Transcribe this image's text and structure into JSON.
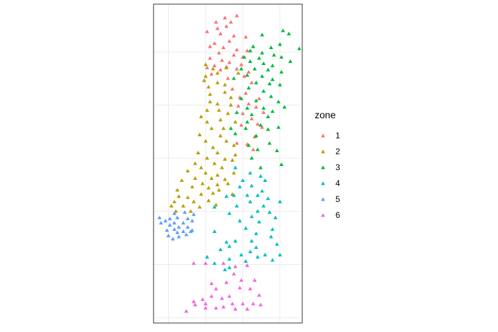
{
  "chart_data": {
    "type": "scatter",
    "marker": "triangle",
    "grid": true,
    "xlim": [
      0,
      10
    ],
    "ylim": [
      0,
      30
    ],
    "legend": {
      "title": "zone",
      "position": "right",
      "entries": [
        {
          "label": "1",
          "color": "#F8766D"
        },
        {
          "label": "2",
          "color": "#B79F00"
        },
        {
          "label": "3",
          "color": "#00BA38"
        },
        {
          "label": "4",
          "color": "#00BFC4"
        },
        {
          "label": "5",
          "color": "#619CFF"
        },
        {
          "label": "6",
          "color": "#F564E3"
        }
      ]
    },
    "series": [
      {
        "name": "1",
        "color": "#F8766D",
        "points": [
          [
            4.2,
            28.3
          ],
          [
            4.8,
            28.7
          ],
          [
            5.6,
            28.9
          ],
          [
            5.2,
            28.3
          ],
          [
            4.9,
            27.9
          ],
          [
            4.3,
            27.7
          ],
          [
            3.6,
            27.4
          ],
          [
            4.5,
            27.2
          ],
          [
            5.4,
            27.0
          ],
          [
            6.2,
            26.9
          ],
          [
            5.1,
            26.5
          ],
          [
            4.1,
            26.3
          ],
          [
            3.8,
            26.0
          ],
          [
            4.7,
            25.9
          ],
          [
            5.6,
            25.7
          ],
          [
            6.3,
            25.6
          ],
          [
            4.4,
            25.4
          ],
          [
            5.4,
            25.2
          ],
          [
            6.0,
            25.0
          ],
          [
            3.8,
            24.9
          ],
          [
            4.6,
            24.7
          ],
          [
            5.1,
            24.5
          ],
          [
            5.9,
            24.3
          ],
          [
            4.1,
            24.2
          ],
          [
            4.9,
            24.1
          ],
          [
            3.6,
            24.0
          ],
          [
            5.6,
            23.9
          ],
          [
            4.5,
            23.8
          ],
          [
            6.4,
            23.6
          ],
          [
            3.9,
            23.4
          ],
          [
            6.1,
            23.2
          ],
          [
            5.0,
            23.0
          ],
          [
            6.6,
            22.6
          ],
          [
            5.3,
            22.0
          ],
          [
            6.2,
            21.6
          ],
          [
            5.8,
            21.2
          ],
          [
            7.1,
            21.1
          ],
          [
            6.4,
            20.6
          ],
          [
            5.7,
            20.4
          ],
          [
            6.9,
            20.3
          ],
          [
            6.0,
            19.7
          ],
          [
            7.4,
            19.8
          ],
          [
            6.6,
            19.2
          ],
          [
            7.0,
            18.7
          ],
          [
            5.9,
            18.6
          ],
          [
            7.3,
            18.4
          ],
          [
            6.8,
            17.5
          ],
          [
            6.3,
            16.8
          ],
          [
            6.7,
            16.3
          ],
          [
            5.6,
            16.9
          ]
        ]
      },
      {
        "name": "2",
        "color": "#B79F00",
        "points": [
          [
            3.5,
            24.3
          ],
          [
            4.0,
            23.9
          ],
          [
            4.9,
            24.0
          ],
          [
            3.5,
            23.2
          ],
          [
            4.3,
            23.5
          ],
          [
            5.7,
            23.5
          ],
          [
            3.4,
            22.8
          ],
          [
            3.7,
            22.2
          ],
          [
            4.3,
            22.6
          ],
          [
            4.8,
            22.4
          ],
          [
            3.8,
            21.5
          ],
          [
            4.8,
            21.7
          ],
          [
            5.2,
            21.2
          ],
          [
            3.8,
            20.8
          ],
          [
            4.3,
            20.6
          ],
          [
            5.2,
            20.5
          ],
          [
            3.6,
            20.0
          ],
          [
            4.4,
            20.0
          ],
          [
            3.2,
            19.4
          ],
          [
            4.5,
            19.1
          ],
          [
            5.0,
            19.7
          ],
          [
            3.6,
            18.9
          ],
          [
            5.5,
            18.9
          ],
          [
            3.9,
            18.3
          ],
          [
            4.7,
            18.3
          ],
          [
            3.1,
            17.7
          ],
          [
            4.5,
            17.6
          ],
          [
            3.5,
            17.1
          ],
          [
            4.9,
            17.1
          ],
          [
            4.0,
            16.5
          ],
          [
            5.4,
            16.7
          ],
          [
            3.0,
            16.0
          ],
          [
            4.3,
            16.0
          ],
          [
            3.6,
            15.5
          ],
          [
            4.8,
            15.4
          ],
          [
            5.5,
            15.8
          ],
          [
            2.8,
            15.0
          ],
          [
            4.1,
            15.0
          ],
          [
            5.3,
            15.3
          ],
          [
            3.2,
            14.6
          ],
          [
            4.6,
            14.6
          ],
          [
            2.3,
            14.3
          ],
          [
            3.5,
            14.1
          ],
          [
            4.3,
            13.9
          ],
          [
            5.4,
            14.1
          ],
          [
            2.8,
            13.6
          ],
          [
            3.9,
            13.6
          ],
          [
            4.8,
            13.5
          ],
          [
            1.9,
            13.4
          ],
          [
            3.3,
            13.1
          ],
          [
            4.3,
            13.0
          ],
          [
            5.0,
            13.1
          ],
          [
            2.6,
            12.8
          ],
          [
            3.7,
            12.7
          ],
          [
            1.6,
            12.5
          ],
          [
            4.4,
            12.5
          ],
          [
            1.7,
            11.9
          ],
          [
            2.3,
            11.8
          ],
          [
            3.2,
            12.1
          ],
          [
            4.0,
            12.2
          ],
          [
            5.3,
            12.1
          ],
          [
            1.4,
            11.4
          ],
          [
            2.7,
            11.4
          ],
          [
            3.7,
            11.5
          ],
          [
            1.2,
            11.0
          ],
          [
            2.0,
            11.0
          ],
          [
            3.1,
            10.9
          ],
          [
            4.2,
            11.1
          ],
          [
            1.5,
            10.5
          ],
          [
            2.5,
            10.5
          ]
        ]
      },
      {
        "name": "3",
        "color": "#00BA38",
        "points": [
          [
            8.7,
            27.5
          ],
          [
            7.3,
            27.1
          ],
          [
            9.1,
            27.2
          ],
          [
            8.5,
            26.2
          ],
          [
            6.7,
            26.0
          ],
          [
            7.9,
            25.9
          ],
          [
            9.8,
            25.8
          ],
          [
            6.5,
            25.6
          ],
          [
            7.3,
            25.4
          ],
          [
            8.1,
            25.2
          ],
          [
            6.1,
            25.0
          ],
          [
            7.1,
            24.9
          ],
          [
            8.6,
            25.0
          ],
          [
            6.5,
            24.6
          ],
          [
            7.4,
            24.4
          ],
          [
            8.0,
            24.2
          ],
          [
            9.2,
            24.6
          ],
          [
            5.9,
            23.9
          ],
          [
            6.8,
            23.9
          ],
          [
            7.7,
            23.8
          ],
          [
            8.6,
            23.6
          ],
          [
            6.3,
            23.3
          ],
          [
            7.3,
            23.2
          ],
          [
            8.0,
            22.9
          ],
          [
            5.4,
            23.0
          ],
          [
            6.9,
            22.6
          ],
          [
            7.8,
            22.5
          ],
          [
            8.5,
            22.4
          ],
          [
            6.4,
            22.1
          ],
          [
            7.4,
            21.8
          ],
          [
            7.9,
            21.3
          ],
          [
            5.9,
            21.1
          ],
          [
            6.9,
            20.9
          ],
          [
            8.4,
            20.8
          ],
          [
            6.3,
            20.2
          ],
          [
            7.4,
            20.2
          ],
          [
            8.0,
            19.9
          ],
          [
            5.6,
            19.8
          ],
          [
            6.6,
            19.6
          ],
          [
            7.7,
            19.4
          ],
          [
            8.8,
            20.3
          ],
          [
            6.3,
            18.9
          ],
          [
            7.2,
            18.6
          ],
          [
            5.2,
            18.3
          ],
          [
            6.2,
            18.3
          ],
          [
            7.7,
            18.2
          ],
          [
            8.4,
            18.4
          ],
          [
            5.5,
            17.8
          ],
          [
            6.9,
            17.6
          ],
          [
            7.8,
            16.9
          ],
          [
            6.4,
            16.7
          ],
          [
            7.0,
            16.3
          ],
          [
            8.3,
            16.2
          ],
          [
            8.6,
            14.9
          ],
          [
            6.6,
            15.5
          ],
          [
            7.2,
            14.6
          ]
        ]
      },
      {
        "name": "4",
        "color": "#00BFC4",
        "points": [
          [
            5.5,
            14.6
          ],
          [
            6.5,
            14.1
          ],
          [
            7.2,
            13.8
          ],
          [
            6.0,
            13.4
          ],
          [
            7.5,
            13.4
          ],
          [
            5.8,
            12.8
          ],
          [
            6.6,
            12.9
          ],
          [
            7.3,
            12.4
          ],
          [
            5.4,
            12.0
          ],
          [
            6.3,
            12.0
          ],
          [
            7.0,
            12.0
          ],
          [
            4.9,
            11.9
          ],
          [
            7.7,
            11.7
          ],
          [
            6.5,
            11.4
          ],
          [
            7.4,
            11.0
          ],
          [
            5.6,
            11.0
          ],
          [
            8.5,
            11.4
          ],
          [
            4.1,
            10.9
          ],
          [
            7.0,
            10.5
          ],
          [
            5.1,
            10.3
          ],
          [
            7.8,
            10.4
          ],
          [
            6.6,
            10.0
          ],
          [
            8.2,
            9.9
          ],
          [
            5.8,
            9.6
          ],
          [
            7.1,
            9.5
          ],
          [
            6.2,
            8.9
          ],
          [
            8.0,
            8.8
          ],
          [
            4.1,
            8.6
          ],
          [
            6.9,
            8.4
          ],
          [
            7.9,
            8.1
          ],
          [
            5.5,
            7.7
          ],
          [
            6.6,
            7.7
          ],
          [
            8.3,
            7.4
          ],
          [
            4.9,
            7.6
          ],
          [
            5.1,
            7.2
          ],
          [
            6.9,
            7.1
          ],
          [
            6.5,
            6.7
          ],
          [
            4.5,
            6.9
          ],
          [
            7.0,
            6.2
          ],
          [
            5.9,
            6.4
          ],
          [
            8.5,
            6.4
          ],
          [
            5.1,
            6.0
          ],
          [
            7.5,
            6.4
          ],
          [
            3.6,
            6.2
          ],
          [
            8.0,
            5.9
          ],
          [
            4.1,
            5.6
          ],
          [
            6.2,
            5.8
          ],
          [
            5.1,
            5.2
          ],
          [
            4.8,
            5.0
          ]
        ]
      },
      {
        "name": "5",
        "color": "#619CFF",
        "points": [
          [
            1.4,
            10.3
          ],
          [
            2.1,
            10.4
          ],
          [
            1.1,
            9.8
          ],
          [
            1.6,
            9.9
          ],
          [
            2.3,
            9.8
          ],
          [
            2.7,
            10.2
          ],
          [
            0.8,
            9.6
          ],
          [
            1.4,
            9.4
          ],
          [
            2.0,
            9.4
          ],
          [
            2.6,
            9.6
          ],
          [
            0.5,
            9.4
          ],
          [
            1.1,
            9.2
          ],
          [
            1.7,
            9.0
          ],
          [
            2.3,
            9.0
          ],
          [
            1.4,
            8.8
          ],
          [
            2.0,
            8.6
          ],
          [
            2.6,
            8.7
          ],
          [
            1.6,
            8.5
          ],
          [
            1.0,
            8.2
          ],
          [
            2.2,
            8.3
          ],
          [
            2.5,
            8.6
          ],
          [
            1.7,
            8.1
          ],
          [
            1.3,
            7.9
          ],
          [
            0.9,
            8.7
          ],
          [
            0.4,
            9.9
          ]
        ]
      },
      {
        "name": "6",
        "color": "#F564E3",
        "points": [
          [
            2.7,
            5.6
          ],
          [
            3.5,
            5.6
          ],
          [
            4.7,
            5.6
          ],
          [
            5.5,
            5.3
          ],
          [
            6.3,
            5.4
          ],
          [
            5.4,
            4.6
          ],
          [
            5.9,
            4.0
          ],
          [
            6.8,
            4.0
          ],
          [
            4.9,
            3.8
          ],
          [
            5.8,
            3.3
          ],
          [
            3.9,
            3.7
          ],
          [
            4.2,
            3.2
          ],
          [
            6.5,
            3.2
          ],
          [
            7.1,
            2.6
          ],
          [
            5.1,
            2.5
          ],
          [
            3.9,
            2.5
          ],
          [
            4.6,
            2.3
          ],
          [
            3.3,
            2.2
          ],
          [
            2.7,
            2.0
          ],
          [
            3.5,
            1.8
          ],
          [
            5.3,
            1.8
          ],
          [
            6.0,
            1.8
          ],
          [
            6.7,
            1.8
          ],
          [
            2.8,
            1.7
          ],
          [
            7.2,
            1.7
          ],
          [
            4.7,
            1.5
          ],
          [
            4.2,
            1.4
          ],
          [
            3.5,
            1.4
          ],
          [
            5.5,
            1.3
          ],
          [
            6.3,
            1.3
          ],
          [
            2.2,
            1.1
          ]
        ]
      }
    ]
  }
}
